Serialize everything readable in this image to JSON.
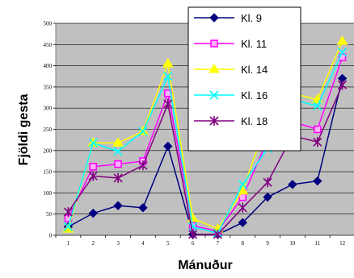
{
  "chart_data": {
    "type": "line",
    "x": [
      "1",
      "2",
      "3",
      "4",
      "5",
      "6",
      "7",
      "8",
      "9",
      "10",
      "11",
      "12"
    ],
    "xlabel": "Mánuður",
    "ylabel": "Fjöldi gesta",
    "ylim": [
      0,
      500
    ],
    "yticks": [
      "0",
      "50",
      "100",
      "150",
      "200",
      "250",
      "300",
      "350",
      "400",
      "450",
      "500"
    ],
    "grid": true,
    "legend_position": "top-right",
    "plot_background": "#c0c0c0",
    "series": [
      {
        "name": "Kl. 9",
        "color": "#000080",
        "marker": "diamond",
        "values": [
          20,
          52,
          70,
          65,
          210,
          2,
          2,
          30,
          90,
          120,
          128,
          370
        ]
      },
      {
        "name": "Kl. 11",
        "color": "#ff00ff",
        "marker": "square",
        "values": [
          40,
          162,
          168,
          175,
          335,
          22,
          10,
          90,
          225,
          268,
          250,
          420
        ]
      },
      {
        "name": "Kl. 14",
        "color": "#ffff00",
        "marker": "triangle",
        "values": [
          15,
          218,
          218,
          245,
          405,
          40,
          15,
          105,
          275,
          335,
          320,
          458
        ]
      },
      {
        "name": "Kl. 16",
        "color": "#00ffff",
        "marker": "x",
        "values": [
          20,
          218,
          198,
          245,
          375,
          20,
          5,
          120,
          205,
          320,
          305,
          432
        ]
      },
      {
        "name": "Kl. 18",
        "color": "#800080",
        "marker": "star",
        "values": [
          55,
          140,
          135,
          165,
          310,
          2,
          2,
          65,
          125,
          235,
          220,
          355
        ]
      }
    ]
  }
}
